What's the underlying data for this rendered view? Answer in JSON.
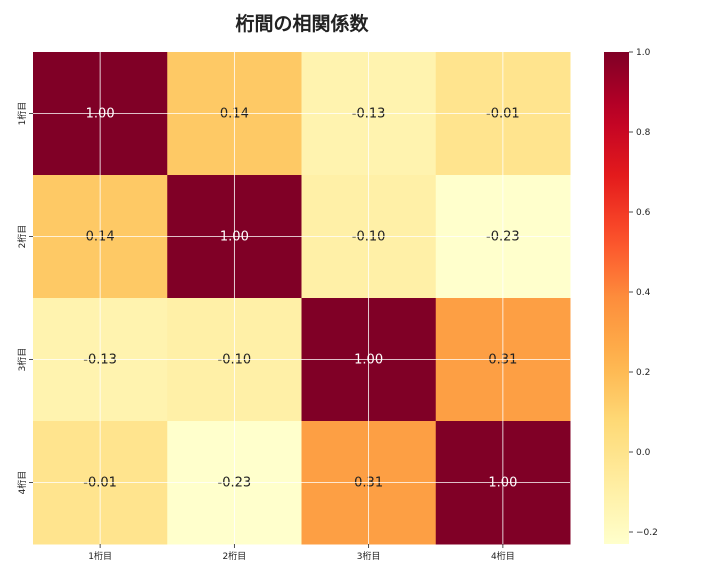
{
  "chart_data": {
    "type": "heatmap",
    "title": "桁間の相関係数",
    "xlabel": "",
    "ylabel": "",
    "x_categories": [
      "1桁目",
      "2桁目",
      "3桁目",
      "4桁目"
    ],
    "y_categories": [
      "1桁目",
      "2桁目",
      "3桁目",
      "4桁目"
    ],
    "values": [
      [
        1.0,
        0.14,
        -0.13,
        -0.01
      ],
      [
        0.14,
        1.0,
        -0.1,
        -0.23
      ],
      [
        -0.13,
        -0.1,
        1.0,
        0.31
      ],
      [
        -0.01,
        -0.23,
        0.31,
        1.0
      ]
    ],
    "labels": [
      [
        "1.00",
        "0.14",
        "-0.13",
        "-0.01"
      ],
      [
        "0.14",
        "1.00",
        "-0.10",
        "-0.23"
      ],
      [
        "-0.13",
        "-0.10",
        "1.00",
        "0.31"
      ],
      [
        "-0.01",
        "-0.23",
        "0.31",
        "1.00"
      ]
    ],
    "colormap": "YlOrRd",
    "vmin": -0.23,
    "vmax": 1.0,
    "colorbar_ticks": [
      1.0,
      0.8,
      0.6,
      0.4,
      0.2,
      0.0,
      -0.2
    ],
    "colorbar_tick_labels": [
      "1.0",
      "0.8",
      "0.6",
      "0.4",
      "0.2",
      "0.0",
      "−0.2"
    ],
    "grid": true,
    "colorbar_position": "right"
  }
}
